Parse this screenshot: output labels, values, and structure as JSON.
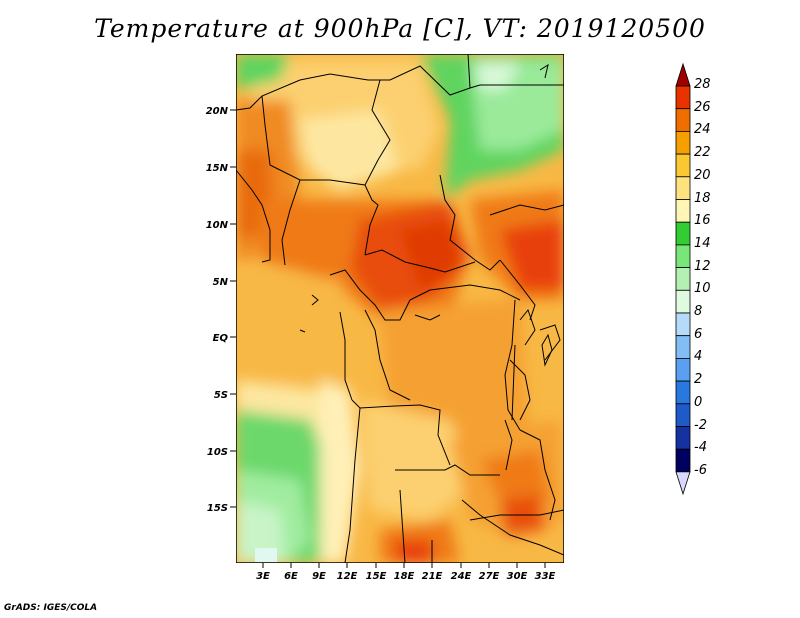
{
  "title": "Temperature at 900hPa [C], VT: 2019120500",
  "credit": "GrADS: IGES/COLA",
  "axes": {
    "lat_ticks": [
      "20N",
      "15N",
      "10N",
      "5N",
      "EQ",
      "5S",
      "10S",
      "15S"
    ],
    "lon_ticks": [
      "3E",
      "6E",
      "9E",
      "12E",
      "15E",
      "18E",
      "21E",
      "24E",
      "27E",
      "30E",
      "33E"
    ]
  },
  "colorbar": {
    "levels": [
      "28",
      "26",
      "24",
      "22",
      "20",
      "18",
      "16",
      "14",
      "12",
      "10",
      "8",
      "6",
      "4",
      "2",
      "0",
      "-2",
      "-4",
      "-6"
    ],
    "colors": [
      "#a00000",
      "#e83200",
      "#f06e00",
      "#f5a000",
      "#fac832",
      "#fde27e",
      "#fff5b4",
      "#33cc33",
      "#78e678",
      "#b4f0b4",
      "#e0fae0",
      "#b4dcfa",
      "#82bef5",
      "#5a9ff0",
      "#2878e0",
      "#1e5ac8",
      "#1432a0",
      "#000060",
      "#d8d8ff"
    ]
  }
}
